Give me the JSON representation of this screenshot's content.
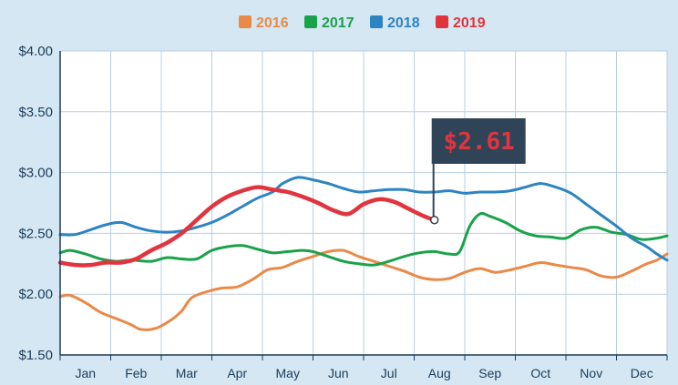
{
  "chart_data": {
    "type": "line",
    "title": "",
    "xlabel": "",
    "ylabel": "",
    "x_categories": [
      "Jan",
      "Feb",
      "Mar",
      "Apr",
      "May",
      "Jun",
      "Jul",
      "Aug",
      "Sep",
      "Oct",
      "Nov",
      "Dec"
    ],
    "y_ticks": [
      "$1.50",
      "$2.00",
      "$2.50",
      "$3.00",
      "$3.50",
      "$4.00"
    ],
    "ylim": [
      1.5,
      4.0
    ],
    "xlim": [
      0,
      12
    ],
    "grid": true,
    "legend_position": "top-center",
    "series": [
      {
        "name": "2016",
        "color": "#e98a48",
        "points": [
          [
            0,
            1.98
          ],
          [
            0.2,
            1.99
          ],
          [
            0.5,
            1.93
          ],
          [
            0.8,
            1.85
          ],
          [
            1.1,
            1.8
          ],
          [
            1.4,
            1.75
          ],
          [
            1.6,
            1.71
          ],
          [
            1.9,
            1.72
          ],
          [
            2.2,
            1.79
          ],
          [
            2.4,
            1.86
          ],
          [
            2.6,
            1.97
          ],
          [
            2.9,
            2.02
          ],
          [
            3.2,
            2.05
          ],
          [
            3.5,
            2.06
          ],
          [
            3.8,
            2.12
          ],
          [
            4.1,
            2.2
          ],
          [
            4.4,
            2.22
          ],
          [
            4.7,
            2.27
          ],
          [
            5.0,
            2.31
          ],
          [
            5.3,
            2.35
          ],
          [
            5.6,
            2.36
          ],
          [
            5.9,
            2.31
          ],
          [
            6.2,
            2.27
          ],
          [
            6.5,
            2.23
          ],
          [
            6.8,
            2.19
          ],
          [
            7.1,
            2.14
          ],
          [
            7.4,
            2.12
          ],
          [
            7.7,
            2.13
          ],
          [
            8.0,
            2.18
          ],
          [
            8.3,
            2.21
          ],
          [
            8.6,
            2.18
          ],
          [
            8.9,
            2.2
          ],
          [
            9.2,
            2.23
          ],
          [
            9.5,
            2.26
          ],
          [
            9.8,
            2.24
          ],
          [
            10.1,
            2.22
          ],
          [
            10.4,
            2.2
          ],
          [
            10.7,
            2.15
          ],
          [
            11.0,
            2.14
          ],
          [
            11.3,
            2.19
          ],
          [
            11.6,
            2.25
          ],
          [
            11.8,
            2.28
          ],
          [
            12.0,
            2.33
          ]
        ]
      },
      {
        "name": "2017",
        "color": "#19a24a",
        "points": [
          [
            0,
            2.34
          ],
          [
            0.2,
            2.36
          ],
          [
            0.5,
            2.33
          ],
          [
            0.8,
            2.29
          ],
          [
            1.1,
            2.27
          ],
          [
            1.4,
            2.28
          ],
          [
            1.8,
            2.27
          ],
          [
            2.1,
            2.3
          ],
          [
            2.4,
            2.29
          ],
          [
            2.7,
            2.29
          ],
          [
            3.0,
            2.36
          ],
          [
            3.3,
            2.39
          ],
          [
            3.6,
            2.4
          ],
          [
            3.9,
            2.37
          ],
          [
            4.2,
            2.34
          ],
          [
            4.5,
            2.35
          ],
          [
            4.8,
            2.36
          ],
          [
            5.0,
            2.35
          ],
          [
            5.3,
            2.31
          ],
          [
            5.6,
            2.27
          ],
          [
            5.9,
            2.25
          ],
          [
            6.2,
            2.24
          ],
          [
            6.5,
            2.27
          ],
          [
            6.8,
            2.31
          ],
          [
            7.1,
            2.34
          ],
          [
            7.4,
            2.35
          ],
          [
            7.7,
            2.33
          ],
          [
            7.9,
            2.35
          ],
          [
            8.1,
            2.56
          ],
          [
            8.3,
            2.66
          ],
          [
            8.5,
            2.64
          ],
          [
            8.8,
            2.59
          ],
          [
            9.1,
            2.52
          ],
          [
            9.4,
            2.48
          ],
          [
            9.7,
            2.47
          ],
          [
            10.0,
            2.46
          ],
          [
            10.3,
            2.53
          ],
          [
            10.6,
            2.55
          ],
          [
            10.9,
            2.51
          ],
          [
            11.2,
            2.49
          ],
          [
            11.5,
            2.45
          ],
          [
            11.8,
            2.46
          ],
          [
            12.0,
            2.48
          ]
        ]
      },
      {
        "name": "2018",
        "color": "#2d84c3",
        "points": [
          [
            0,
            2.49
          ],
          [
            0.3,
            2.49
          ],
          [
            0.6,
            2.53
          ],
          [
            0.9,
            2.57
          ],
          [
            1.2,
            2.59
          ],
          [
            1.5,
            2.55
          ],
          [
            1.8,
            2.52
          ],
          [
            2.1,
            2.51
          ],
          [
            2.4,
            2.52
          ],
          [
            2.7,
            2.55
          ],
          [
            3.0,
            2.59
          ],
          [
            3.3,
            2.65
          ],
          [
            3.6,
            2.72
          ],
          [
            3.9,
            2.79
          ],
          [
            4.2,
            2.84
          ],
          [
            4.4,
            2.91
          ],
          [
            4.7,
            2.96
          ],
          [
            5.0,
            2.94
          ],
          [
            5.3,
            2.91
          ],
          [
            5.6,
            2.87
          ],
          [
            5.9,
            2.84
          ],
          [
            6.2,
            2.85
          ],
          [
            6.5,
            2.86
          ],
          [
            6.8,
            2.86
          ],
          [
            7.1,
            2.84
          ],
          [
            7.4,
            2.84
          ],
          [
            7.7,
            2.85
          ],
          [
            8.0,
            2.83
          ],
          [
            8.3,
            2.84
          ],
          [
            8.6,
            2.84
          ],
          [
            8.9,
            2.85
          ],
          [
            9.2,
            2.88
          ],
          [
            9.5,
            2.91
          ],
          [
            9.8,
            2.88
          ],
          [
            10.1,
            2.83
          ],
          [
            10.4,
            2.74
          ],
          [
            10.7,
            2.65
          ],
          [
            11.0,
            2.56
          ],
          [
            11.3,
            2.46
          ],
          [
            11.6,
            2.39
          ],
          [
            11.8,
            2.33
          ],
          [
            12.0,
            2.28
          ]
        ]
      },
      {
        "name": "2019",
        "color": "#e2343f",
        "points": [
          [
            0,
            2.26
          ],
          [
            0.3,
            2.24
          ],
          [
            0.6,
            2.24
          ],
          [
            0.9,
            2.26
          ],
          [
            1.2,
            2.26
          ],
          [
            1.5,
            2.29
          ],
          [
            1.8,
            2.36
          ],
          [
            2.1,
            2.42
          ],
          [
            2.4,
            2.5
          ],
          [
            2.7,
            2.61
          ],
          [
            3.0,
            2.72
          ],
          [
            3.3,
            2.8
          ],
          [
            3.6,
            2.85
          ],
          [
            3.9,
            2.88
          ],
          [
            4.2,
            2.86
          ],
          [
            4.5,
            2.84
          ],
          [
            4.8,
            2.8
          ],
          [
            5.1,
            2.75
          ],
          [
            5.4,
            2.69
          ],
          [
            5.7,
            2.66
          ],
          [
            6.0,
            2.74
          ],
          [
            6.3,
            2.78
          ],
          [
            6.6,
            2.76
          ],
          [
            6.9,
            2.7
          ],
          [
            7.2,
            2.64
          ],
          [
            7.4,
            2.61
          ]
        ]
      }
    ],
    "callout": {
      "label": "$2.61",
      "x": 7.4,
      "y": 2.61,
      "flag_color": "#2f4557",
      "text_color": "#e2343f"
    }
  }
}
